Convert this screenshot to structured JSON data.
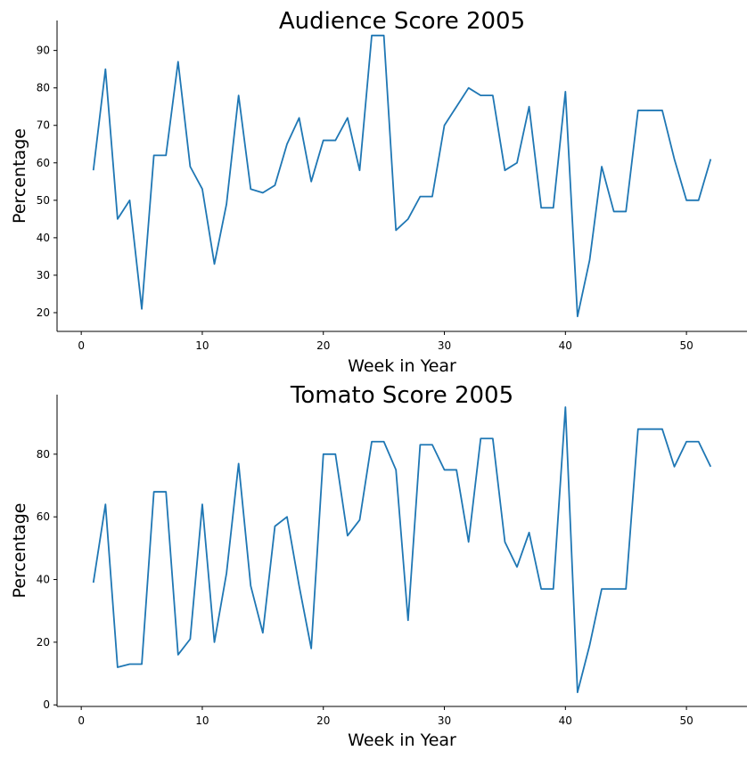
{
  "chart_data": [
    {
      "type": "line",
      "title": "Audience Score 2005",
      "xlabel": "Week in Year",
      "ylabel": "Percentage",
      "xlim": [
        -2,
        55
      ],
      "ylim": [
        15,
        98
      ],
      "xticks": [
        0,
        10,
        20,
        30,
        40,
        50
      ],
      "yticks": [
        20,
        30,
        40,
        50,
        60,
        70,
        80,
        90
      ],
      "grid": false,
      "color": "#1f77b4",
      "x": [
        1,
        2,
        3,
        4,
        5,
        6,
        7,
        8,
        9,
        10,
        11,
        12,
        13,
        14,
        15,
        16,
        17,
        18,
        19,
        20,
        21,
        22,
        23,
        24,
        25,
        26,
        27,
        28,
        29,
        30,
        31,
        32,
        33,
        34,
        35,
        36,
        37,
        38,
        39,
        40,
        41,
        42,
        43,
        44,
        45,
        46,
        47,
        48,
        49,
        50,
        51,
        52
      ],
      "series": [
        {
          "values": [
            58,
            85,
            45,
            50,
            21,
            62,
            62,
            87,
            59,
            53,
            33,
            49,
            78,
            53,
            52,
            54,
            65,
            72,
            55,
            66,
            66,
            72,
            58,
            94,
            94,
            42,
            45,
            51,
            51,
            70,
            75,
            80,
            78,
            78,
            58,
            60,
            75,
            48,
            48,
            79,
            19,
            34,
            59,
            47,
            47,
            74,
            74,
            74,
            61,
            50,
            50,
            61
          ]
        }
      ]
    },
    {
      "type": "line",
      "title": "Tomato Score 2005",
      "xlabel": "Week in Year",
      "ylabel": "Percentage",
      "xlim": [
        -2,
        55
      ],
      "ylim": [
        -0.5,
        99
      ],
      "xticks": [
        0,
        10,
        20,
        30,
        40,
        50
      ],
      "yticks": [
        0,
        20,
        40,
        60,
        80
      ],
      "grid": false,
      "color": "#1f77b4",
      "x": [
        1,
        2,
        3,
        4,
        5,
        6,
        7,
        8,
        9,
        10,
        11,
        12,
        13,
        14,
        15,
        16,
        17,
        18,
        19,
        20,
        21,
        22,
        23,
        24,
        25,
        26,
        27,
        28,
        29,
        30,
        31,
        32,
        33,
        34,
        35,
        36,
        37,
        38,
        39,
        40,
        41,
        42,
        43,
        44,
        45,
        46,
        47,
        48,
        49,
        50,
        51,
        52
      ],
      "series": [
        {
          "values": [
            39,
            64,
            12,
            13,
            13,
            68,
            68,
            16,
            21,
            64,
            20,
            42,
            77,
            38,
            23,
            57,
            60,
            38,
            18,
            80,
            80,
            54,
            59,
            84,
            84,
            75,
            27,
            83,
            83,
            75,
            75,
            52,
            85,
            85,
            52,
            44,
            55,
            37,
            37,
            95,
            4,
            19,
            37,
            37,
            37,
            88,
            88,
            88,
            76,
            84,
            84,
            76
          ]
        }
      ]
    }
  ]
}
